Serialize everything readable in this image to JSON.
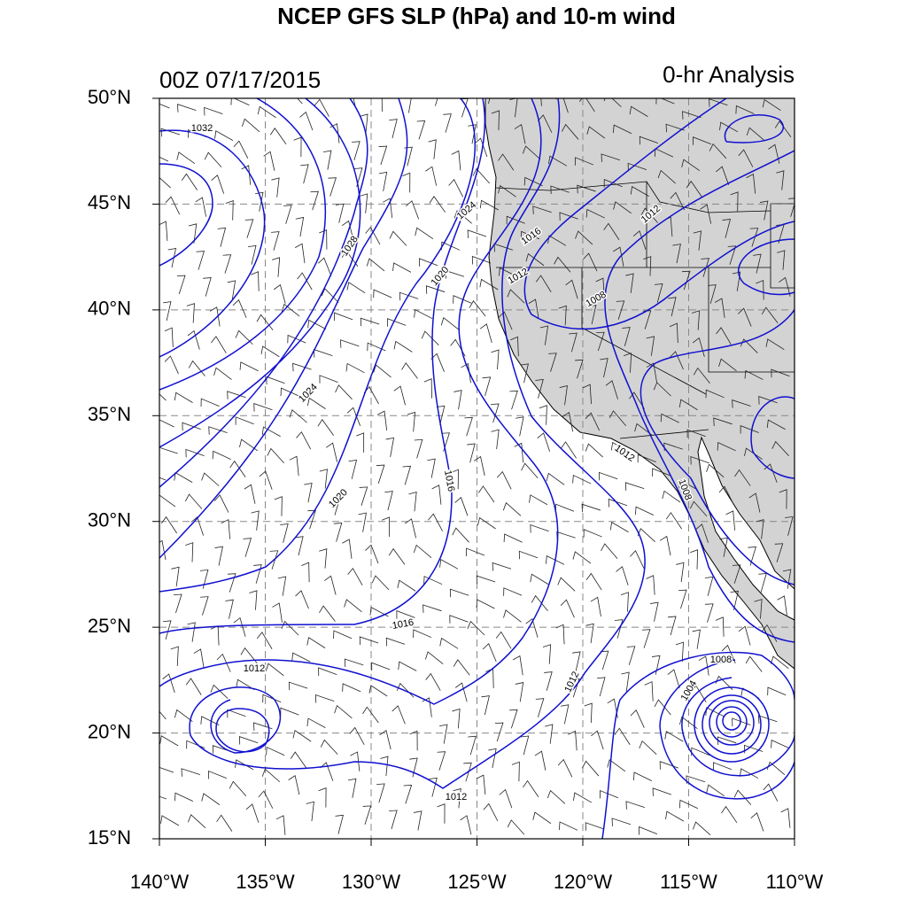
{
  "title": "NCEP GFS SLP (hPa) and 10-m wind",
  "left_string": "00Z 07/17/2015",
  "right_string": "0-hr Analysis",
  "axes": {
    "xlim": [
      -140,
      -110
    ],
    "ylim": [
      15,
      50
    ],
    "xticks": [
      {
        "value": -140,
        "label": "140°W"
      },
      {
        "value": -135,
        "label": "135°W"
      },
      {
        "value": -130,
        "label": "130°W"
      },
      {
        "value": -125,
        "label": "125°W"
      },
      {
        "value": -120,
        "label": "120°W"
      },
      {
        "value": -115,
        "label": "115°W"
      },
      {
        "value": -110,
        "label": "110°W"
      }
    ],
    "yticks": [
      {
        "value": 15,
        "label": "15°N"
      },
      {
        "value": 20,
        "label": "20°N"
      },
      {
        "value": 25,
        "label": "25°N"
      },
      {
        "value": 30,
        "label": "30°N"
      },
      {
        "value": 35,
        "label": "35°N"
      },
      {
        "value": 40,
        "label": "40°N"
      },
      {
        "value": 45,
        "label": "45°N"
      },
      {
        "value": 50,
        "label": "50°N"
      }
    ]
  },
  "contour_labels": [
    "1032",
    "1028",
    "1024",
    "1020",
    "1024",
    "1020",
    "1016",
    "1016",
    "1012",
    "1012",
    "1008",
    "1012",
    "1008",
    "1016",
    "1012",
    "1012",
    "1012",
    "1008",
    "1004"
  ]
}
